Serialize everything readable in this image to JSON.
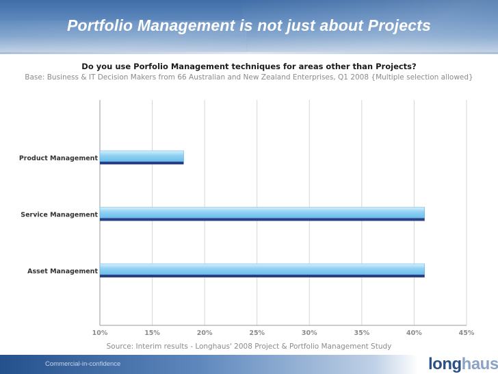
{
  "header": {
    "title": "Portfolio Management is not just about Projects"
  },
  "chart_data": {
    "type": "bar",
    "orientation": "horizontal",
    "title": "Do you use Porfolio Management techniques for areas other than Projects?",
    "subtitle": "Base: Business & IT Decision Makers from 66 Australian and New Zealand Enterprises, Q1 2008 {Multiple selection allowed}",
    "categories": [
      "Product Management",
      "Service Management",
      "Asset Management"
    ],
    "values": [
      18,
      41,
      41
    ],
    "xlim": [
      10,
      45
    ],
    "ticks": [
      10,
      15,
      20,
      25,
      30,
      35,
      40,
      45
    ],
    "tick_labels": [
      "10%",
      "15%",
      "20%",
      "25%",
      "30%",
      "35%",
      "40%",
      "45%"
    ],
    "grid": "vertical",
    "legend": "none",
    "colors": {
      "bar_light": "#8fd0f3",
      "bar_dark": "#2b3f86"
    }
  },
  "source": "Source: Interim results - Longhaus' 2008 Project & Portfolio Management Study",
  "footer": {
    "confidentiality": "Commercial-in-confidence",
    "logo_part1": "long",
    "logo_part2": "haus"
  }
}
